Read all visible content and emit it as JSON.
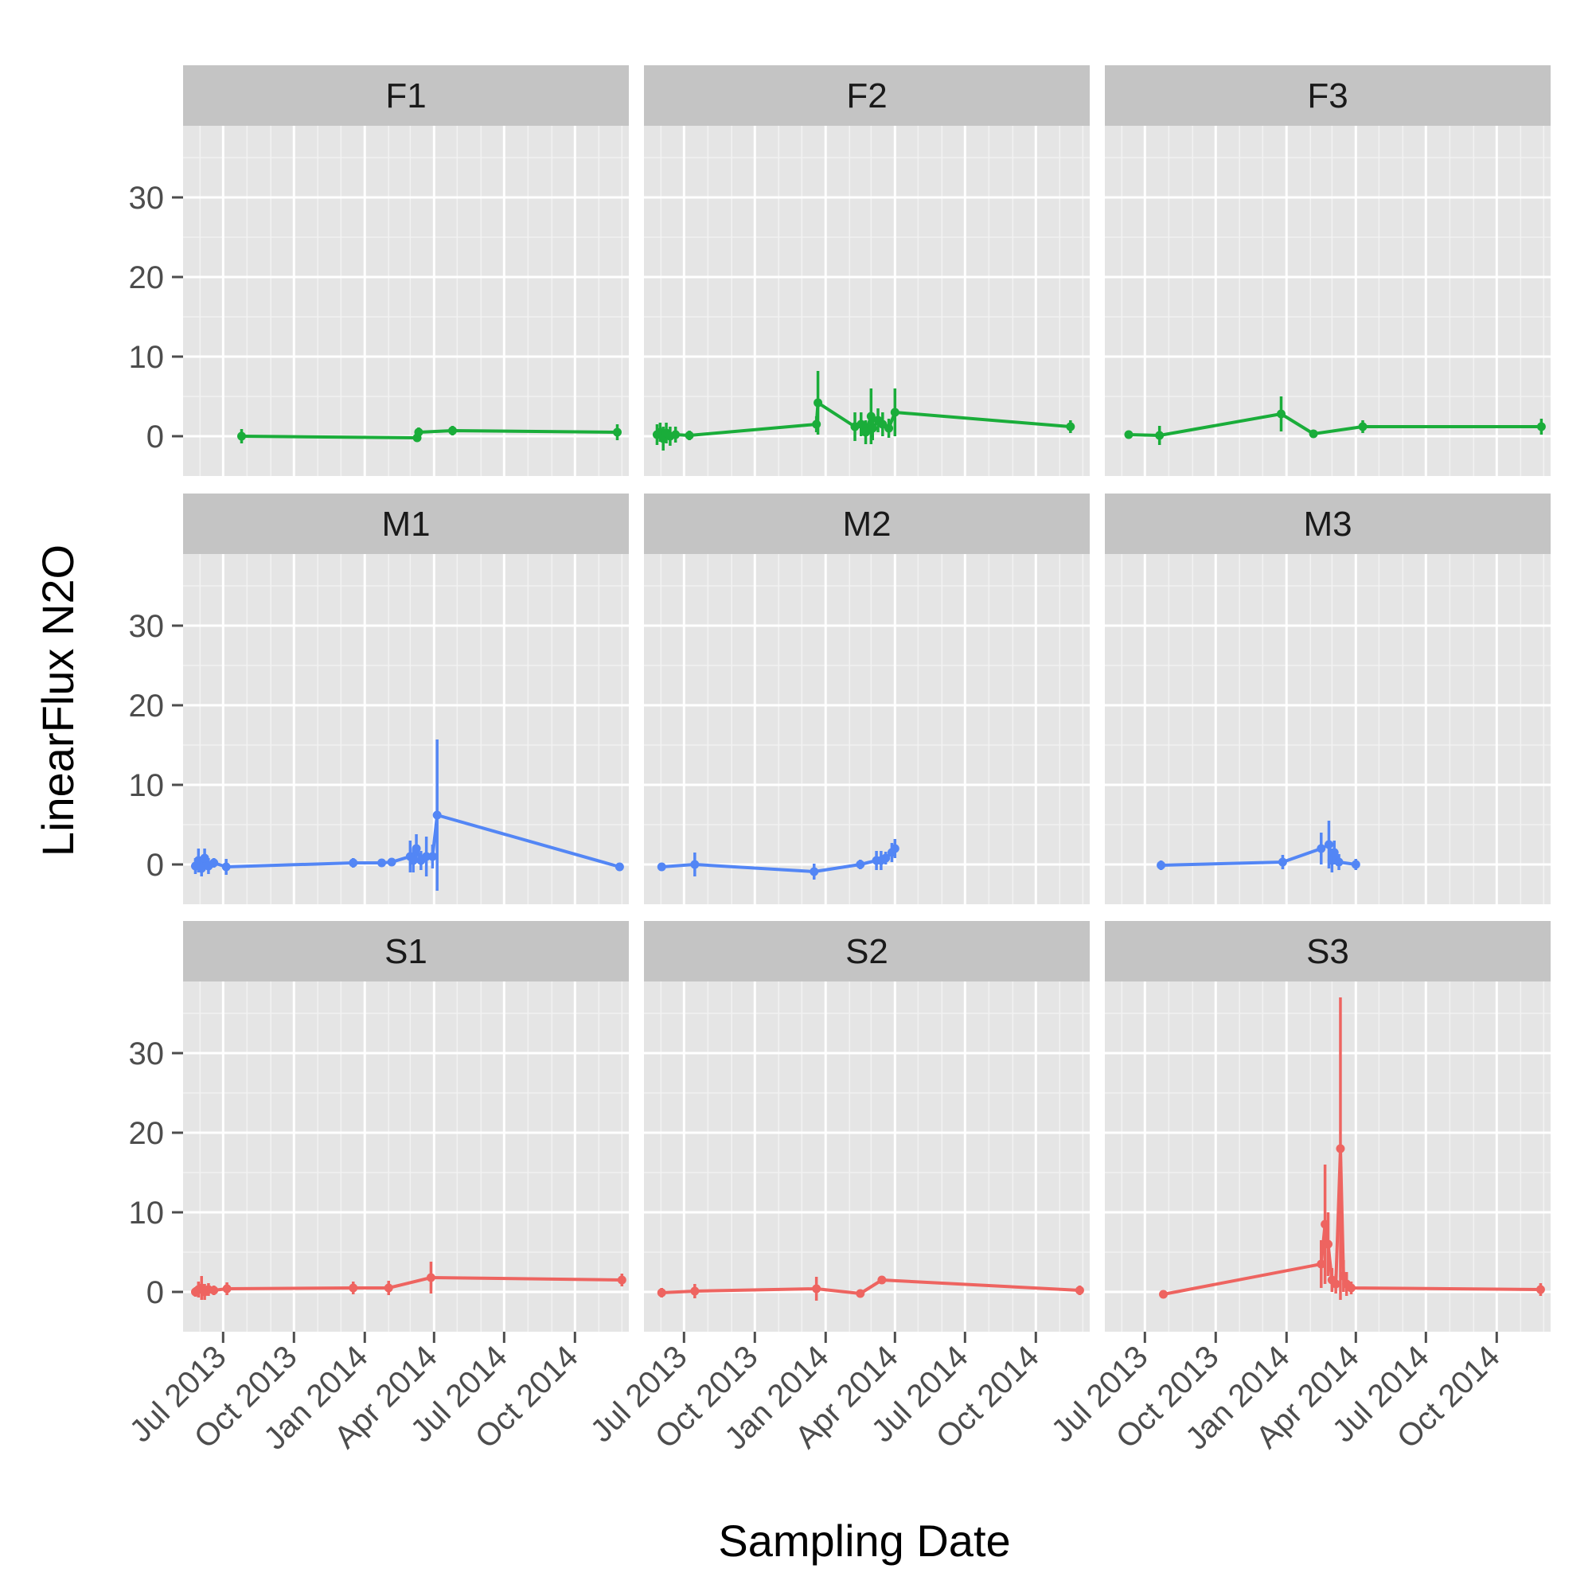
{
  "chart_data": {
    "type": "line",
    "xlabel": "Sampling Date",
    "ylabel": "LinearFlux N2O",
    "xlim": [
      "2013-05-10",
      "2014-12-10"
    ],
    "ylim": [
      -5,
      39
    ],
    "y_ticks": [
      0,
      10,
      20,
      30
    ],
    "x_ticks": [
      {
        "date": "2013-07-01",
        "label": "Jul 2013"
      },
      {
        "date": "2013-10-01",
        "label": "Oct 2013"
      },
      {
        "date": "2014-01-01",
        "label": "Jan 2014"
      },
      {
        "date": "2014-04-01",
        "label": "Apr 2014"
      },
      {
        "date": "2014-07-01",
        "label": "Jul 2014"
      },
      {
        "date": "2014-10-01",
        "label": "Oct 2014"
      }
    ],
    "facet_rows": 3,
    "facet_cols": 3,
    "grid": true,
    "legend": "none",
    "colors": {
      "F": "#1aad3a",
      "M": "#5386f5",
      "S": "#ee6460"
    },
    "panels": [
      {
        "name": "F1",
        "color": "F",
        "points": [
          [
            "2013-07-25",
            0.0,
            0.9
          ],
          [
            "2014-03-10",
            -0.2,
            0.5
          ],
          [
            "2014-03-12",
            0.5,
            0.6
          ],
          [
            "2014-04-25",
            0.7,
            0.6
          ],
          [
            "2014-11-25",
            0.5,
            1.0
          ]
        ]
      },
      {
        "name": "F2",
        "color": "F",
        "points": [
          [
            "2013-05-27",
            0.2,
            1.3
          ],
          [
            "2013-05-31",
            0.5,
            1.2
          ],
          [
            "2013-06-04",
            -0.3,
            1.5
          ],
          [
            "2013-06-08",
            0.4,
            1.3
          ],
          [
            "2013-06-13",
            0.0,
            1.2
          ],
          [
            "2013-06-20",
            0.2,
            1.0
          ],
          [
            "2013-07-08",
            0.1,
            0.6
          ],
          [
            "2013-12-20",
            1.5,
            1.0
          ],
          [
            "2013-12-22",
            4.2,
            4.0
          ],
          [
            "2014-02-08",
            1.2,
            1.8
          ],
          [
            "2014-02-16",
            1.5,
            1.5
          ],
          [
            "2014-02-22",
            0.5,
            1.5
          ],
          [
            "2014-03-01",
            2.5,
            3.5
          ],
          [
            "2014-03-03",
            1.0,
            1.5
          ],
          [
            "2014-03-10",
            2.0,
            1.5
          ],
          [
            "2014-03-16",
            1.5,
            1.5
          ],
          [
            "2014-03-24",
            1.0,
            1.2
          ],
          [
            "2014-04-01",
            3.0,
            3.0
          ],
          [
            "2014-11-15",
            1.2,
            0.8
          ]
        ]
      },
      {
        "name": "F3",
        "color": "F",
        "points": [
          [
            "2013-06-10",
            0.2,
            0.5
          ],
          [
            "2013-07-20",
            0.1,
            1.2
          ],
          [
            "2013-12-25",
            2.8,
            2.2
          ],
          [
            "2014-02-05",
            0.3,
            0.5
          ],
          [
            "2014-04-10",
            1.2,
            0.8
          ],
          [
            "2014-11-28",
            1.2,
            1.0
          ]
        ]
      },
      {
        "name": "M1",
        "color": "M",
        "points": [
          [
            "2013-05-26",
            -0.2,
            1.0
          ],
          [
            "2013-05-30",
            0.5,
            1.5
          ],
          [
            "2013-06-03",
            -0.5,
            1.0
          ],
          [
            "2013-06-07",
            0.8,
            1.2
          ],
          [
            "2013-06-12",
            -0.2,
            1.0
          ],
          [
            "2013-06-19",
            0.2,
            0.6
          ],
          [
            "2013-07-05",
            -0.3,
            1.0
          ],
          [
            "2013-12-17",
            0.2,
            0.6
          ],
          [
            "2014-01-23",
            0.2,
            0.4
          ],
          [
            "2014-02-05",
            0.3,
            0.3
          ],
          [
            "2014-03-01",
            1.0,
            2.0
          ],
          [
            "2014-03-05",
            0.5,
            1.5
          ],
          [
            "2014-03-09",
            2.0,
            1.8
          ],
          [
            "2014-03-15",
            0.5,
            1.2
          ],
          [
            "2014-03-22",
            1.0,
            2.5
          ],
          [
            "2014-03-30",
            1.0,
            1.5
          ],
          [
            "2014-04-05",
            6.2,
            9.5
          ],
          [
            "2014-11-28",
            -0.3,
            0.4
          ]
        ]
      },
      {
        "name": "M2",
        "color": "M",
        "points": [
          [
            "2013-06-02",
            -0.3,
            0.5
          ],
          [
            "2013-07-15",
            0.0,
            1.5
          ],
          [
            "2013-12-17",
            -0.9,
            1.0
          ],
          [
            "2014-02-15",
            0.0,
            0.6
          ],
          [
            "2014-03-08",
            0.5,
            1.2
          ],
          [
            "2014-03-14",
            0.5,
            1.2
          ],
          [
            "2014-03-20",
            0.8,
            0.8
          ],
          [
            "2014-03-28",
            1.5,
            1.2
          ],
          [
            "2014-04-01",
            2.0,
            1.2
          ]
        ]
      },
      {
        "name": "M3",
        "color": "M",
        "points": [
          [
            "2013-07-22",
            -0.1,
            0.6
          ],
          [
            "2013-12-27",
            0.3,
            0.9
          ],
          [
            "2014-02-15",
            2.0,
            2.0
          ],
          [
            "2014-02-25",
            2.5,
            3.0
          ],
          [
            "2014-03-01",
            0.5,
            1.5
          ],
          [
            "2014-03-04",
            1.5,
            1.5
          ],
          [
            "2014-03-10",
            0.3,
            1.0
          ],
          [
            "2014-04-01",
            0.0,
            0.7
          ]
        ]
      },
      {
        "name": "S1",
        "color": "S",
        "points": [
          [
            "2013-05-26",
            0.0,
            0.6
          ],
          [
            "2013-05-30",
            0.3,
            1.0
          ],
          [
            "2013-06-03",
            0.5,
            1.5
          ],
          [
            "2013-06-07",
            0.0,
            1.0
          ],
          [
            "2013-06-12",
            0.3,
            0.8
          ],
          [
            "2013-06-19",
            0.2,
            0.6
          ],
          [
            "2013-07-06",
            0.4,
            0.8
          ],
          [
            "2013-12-17",
            0.5,
            0.8
          ],
          [
            "2014-02-01",
            0.5,
            0.9
          ],
          [
            "2014-03-28",
            1.8,
            2.0
          ],
          [
            "2014-12-01",
            1.5,
            0.8
          ]
        ]
      },
      {
        "name": "S2",
        "color": "S",
        "points": [
          [
            "2013-06-02",
            -0.1,
            0.6
          ],
          [
            "2013-07-15",
            0.1,
            0.9
          ],
          [
            "2013-12-20",
            0.4,
            1.5
          ],
          [
            "2014-02-15",
            -0.2,
            0.3
          ],
          [
            "2014-03-15",
            1.5,
            0.4
          ],
          [
            "2014-11-27",
            0.2,
            0.6
          ]
        ]
      },
      {
        "name": "S3",
        "color": "S",
        "points": [
          [
            "2013-07-25",
            -0.3,
            0.5
          ],
          [
            "2014-02-15",
            3.5,
            3.0
          ],
          [
            "2014-02-20",
            8.5,
            7.5
          ],
          [
            "2014-02-24",
            6.0,
            4.0
          ],
          [
            "2014-03-01",
            1.5,
            1.5
          ],
          [
            "2014-03-06",
            1.0,
            1.2
          ],
          [
            "2014-03-12",
            18.0,
            19.0
          ],
          [
            "2014-03-16",
            2.0,
            2.0
          ],
          [
            "2014-03-20",
            1.0,
            1.5
          ],
          [
            "2014-03-26",
            0.5,
            0.8
          ],
          [
            "2014-11-27",
            0.3,
            0.8
          ]
        ]
      }
    ]
  }
}
